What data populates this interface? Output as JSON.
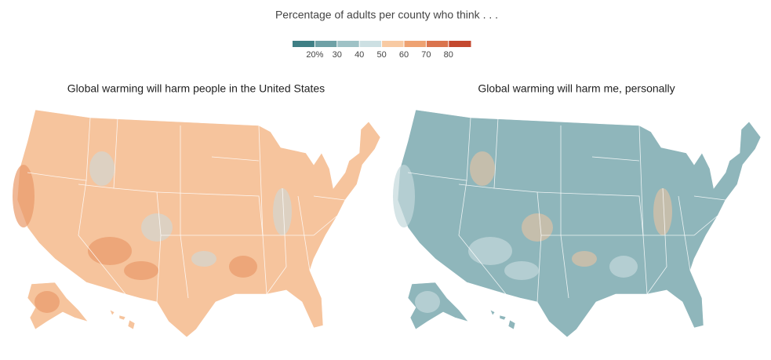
{
  "header": {
    "subtitle": "Percentage of adults per county who think . . ."
  },
  "legend": {
    "colors": [
      "#3f7f85",
      "#6fa1a6",
      "#9fc2c6",
      "#cde0e3",
      "#f8caa3",
      "#eea272",
      "#da744e",
      "#c4492f"
    ],
    "ticks": [
      {
        "value": 20,
        "label": "20%"
      },
      30,
      40,
      50,
      60,
      70,
      80
    ]
  },
  "maps": [
    {
      "title": "Global warming will harm people in the United States",
      "color": "#f6c49d",
      "accent": "#ea9a6a",
      "patch": "#c8dce0"
    },
    {
      "title": "Global warming will harm me, personally",
      "color": "#8fb6bb",
      "accent": "#c3d9dc",
      "patch": "#f3c4a0"
    }
  ]
}
